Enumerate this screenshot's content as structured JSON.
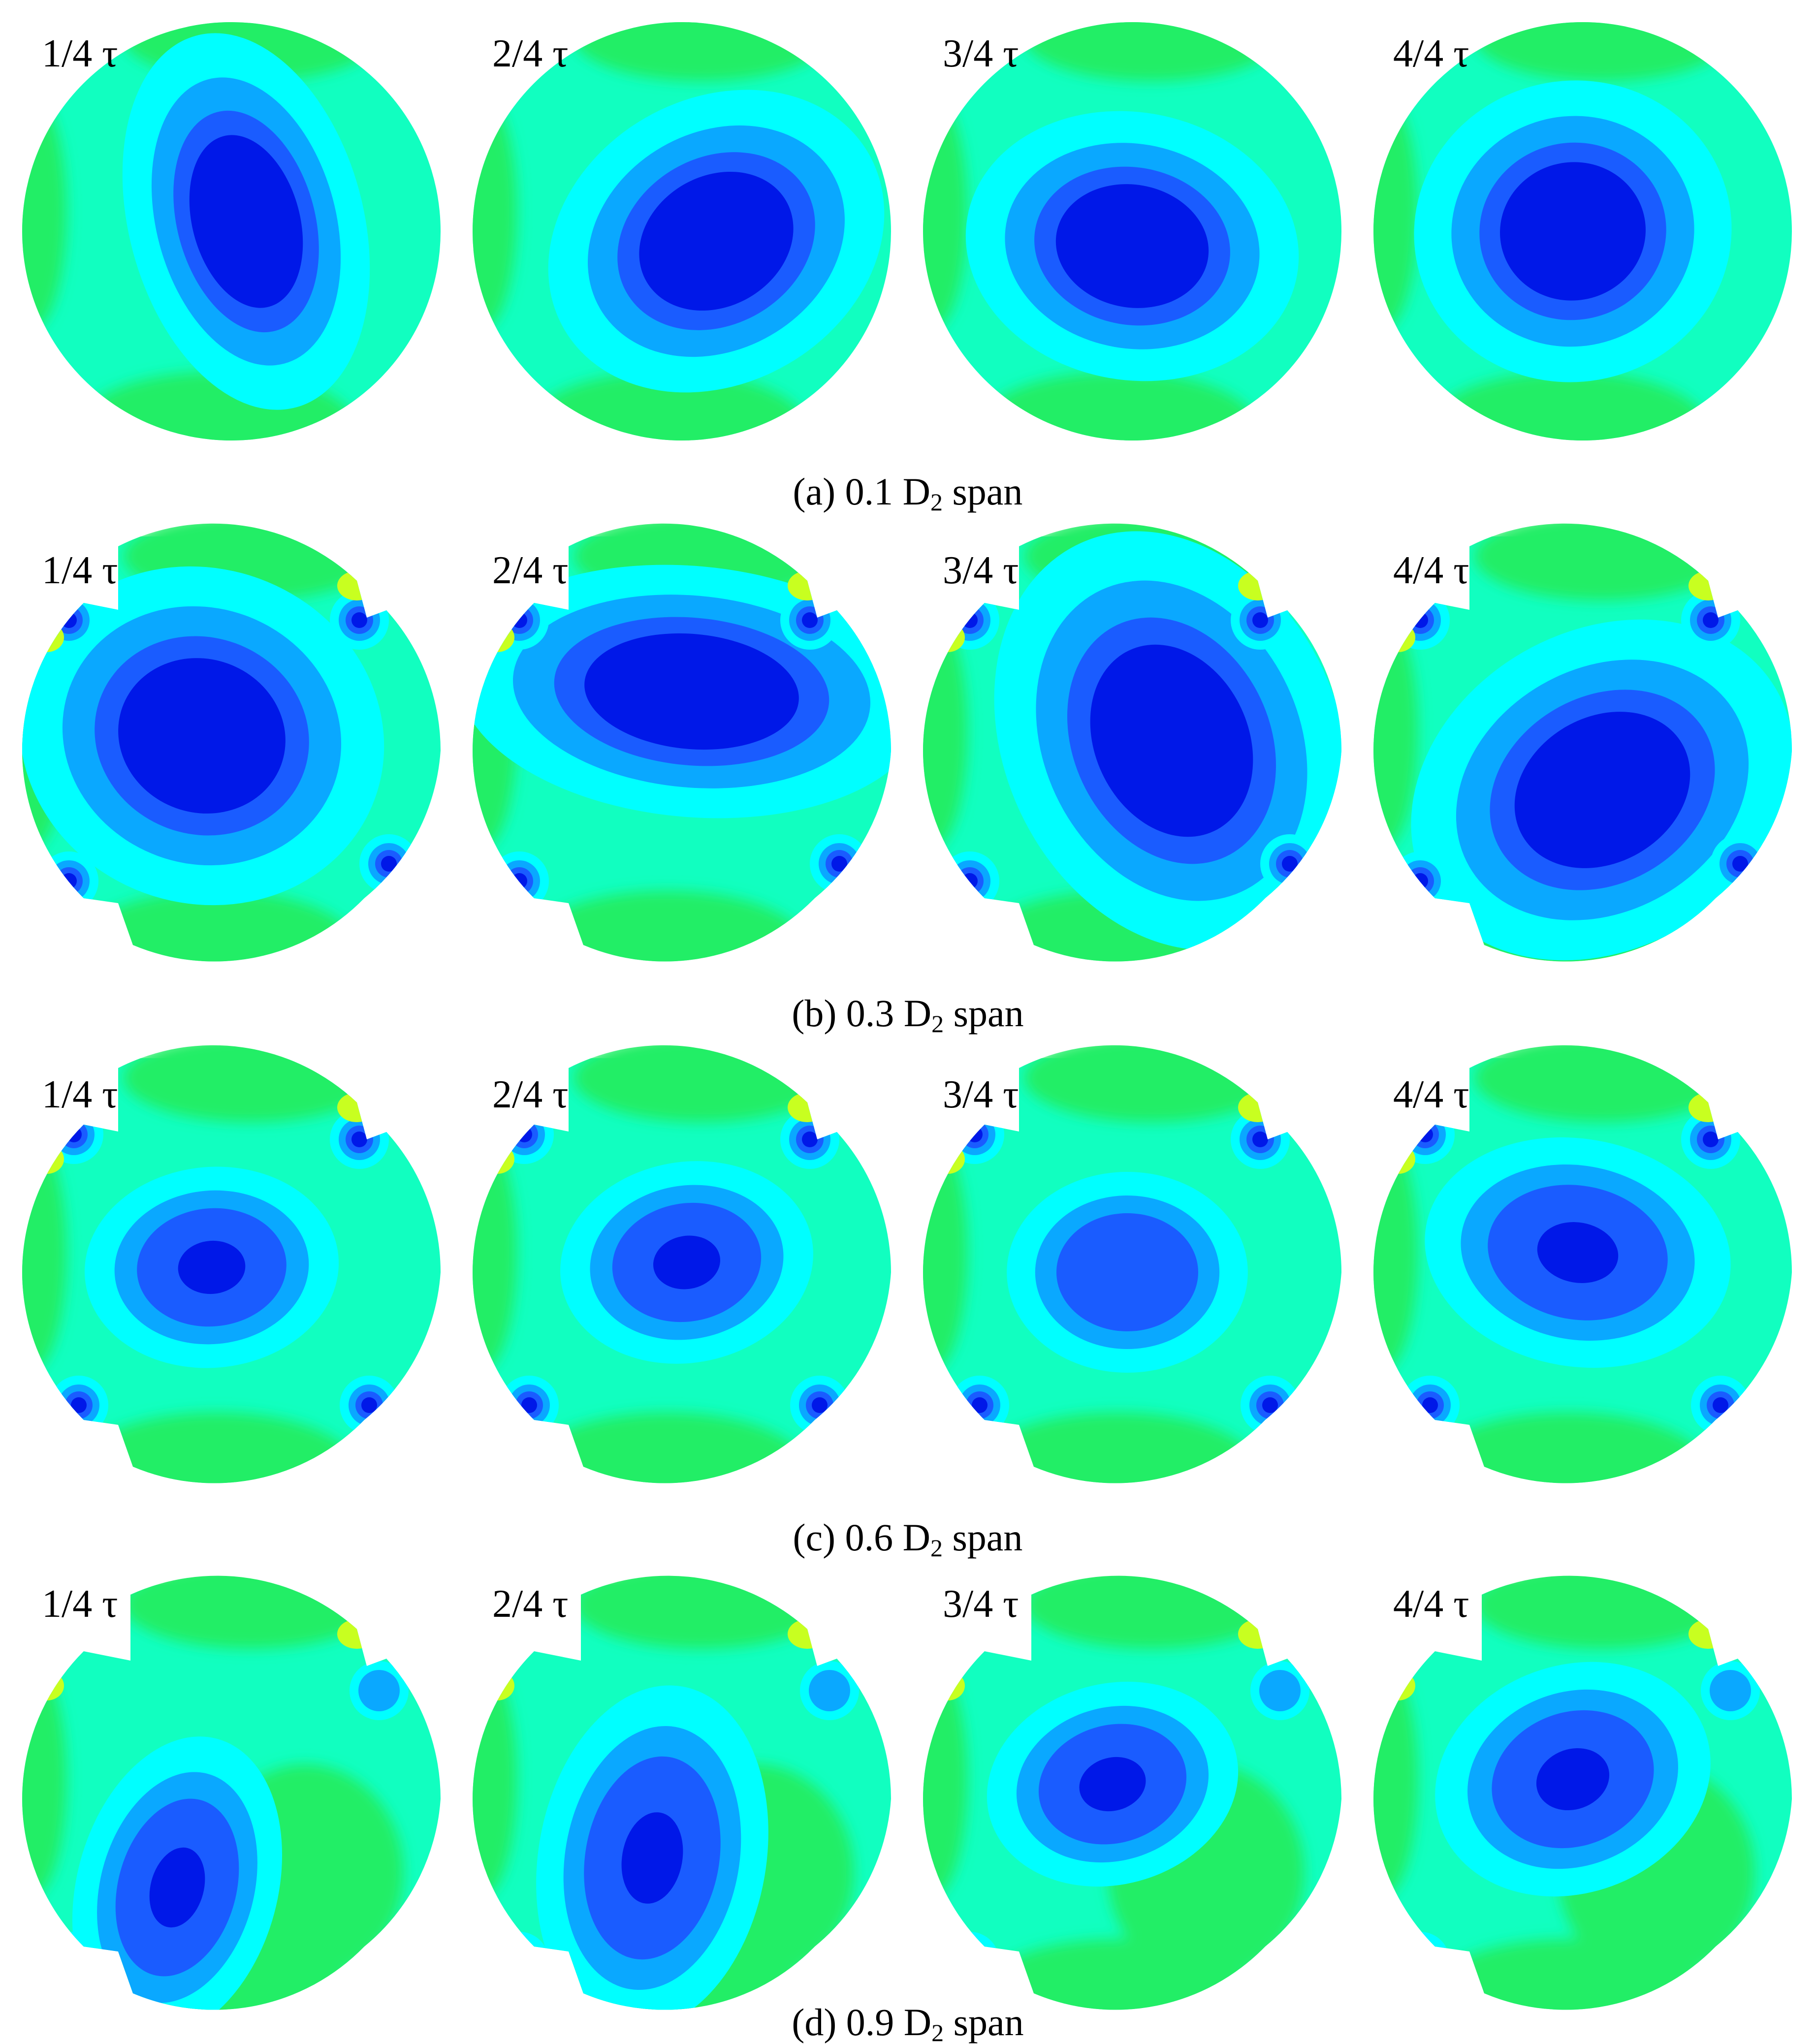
{
  "panels": [
    {
      "caption_prefix": "(a) 0.1 D",
      "subscript": "2",
      "caption_suffix": " span",
      "frames": [
        "1/4 τ",
        "2/4 τ",
        "3/4 τ",
        "4/4 τ"
      ]
    },
    {
      "caption_prefix": "(b) 0.3 D",
      "subscript": "2",
      "caption_suffix": " span",
      "frames": [
        "1/4 τ",
        "2/4 τ",
        "3/4 τ",
        "4/4 τ"
      ]
    },
    {
      "caption_prefix": "(c) 0.6 D",
      "subscript": "2",
      "caption_suffix": " span",
      "frames": [
        "1/4 τ",
        "2/4 τ",
        "3/4 τ",
        "4/4 τ"
      ]
    },
    {
      "caption_prefix": "(d) 0.9 D",
      "subscript": "2",
      "caption_suffix": " span",
      "frames": [
        "1/4 τ",
        "2/4 τ",
        "3/4 τ",
        "4/4 τ"
      ]
    }
  ],
  "colors": {
    "background": "#ffffff",
    "field_green": "#22ee66",
    "field_aqua": "#11ffc0",
    "level_cyan": "#00ffff",
    "level_light_blue": "#0aa8ff",
    "level_mid_blue": "#1a5cff",
    "level_dark_blue": "#0018e8",
    "level_yellow": "#c8ff20",
    "level_orange": "#ffa000",
    "level_red": "#ff1e00"
  }
}
